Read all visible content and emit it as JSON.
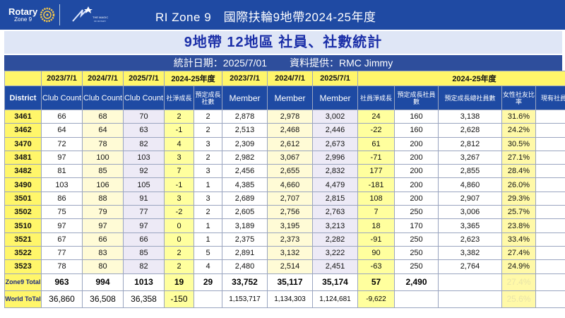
{
  "header": {
    "brand": "Rotary",
    "brand_sub": "Zone 9",
    "logo_tag": "THE MAGIC OF ROTARY",
    "title": "RI Zone 9　國際扶輪9地帶2024-25年度"
  },
  "subtitle": "9地帶 12地區 社員、社數統計",
  "stat": {
    "date": "統計日期：2025/7/01",
    "source": "資料提供：RMC Jimmy"
  },
  "columns_top": [
    "",
    "2023/7/1",
    "2024/7/1",
    "2025/7/1",
    "2024-25年度",
    "2023/7/1",
    "2024/7/1",
    "2025/7/1",
    "2024-25年度"
  ],
  "columns": {
    "district": "District",
    "club23": "Club Count",
    "club24": "Club Count",
    "club25": "Club Count",
    "club_net": "社淨成長",
    "club_goal": "預定成長社數",
    "mem23": "Member",
    "mem24": "Member",
    "mem25": "Member",
    "mem_net": "社員淨成長",
    "mem_goal": "預定成長社員數",
    "mem_goal_total": "預定成長總社員數",
    "female": "女性社友比率",
    "retention": "現有社員續留率"
  },
  "rows": [
    {
      "d": "3461",
      "c23": "66",
      "c24": "68",
      "c25": "70",
      "cn": "2",
      "cg": "2",
      "m23": "2,878",
      "m24": "2,978",
      "m25": "3,002",
      "mn": "24",
      "mg": "160",
      "mt": "3,138",
      "f": "31.6%"
    },
    {
      "d": "3462",
      "c23": "64",
      "c24": "64",
      "c25": "63",
      "cn": "-1",
      "cg": "2",
      "m23": "2,513",
      "m24": "2,468",
      "m25": "2,446",
      "mn": "-22",
      "mg": "160",
      "mt": "2,628",
      "f": "24.2%"
    },
    {
      "d": "3470",
      "c23": "72",
      "c24": "78",
      "c25": "82",
      "cn": "4",
      "cg": "3",
      "m23": "2,309",
      "m24": "2,612",
      "m25": "2,673",
      "mn": "61",
      "mg": "200",
      "mt": "2,812",
      "f": "30.5%"
    },
    {
      "d": "3481",
      "c23": "97",
      "c24": "100",
      "c25": "103",
      "cn": "3",
      "cg": "2",
      "m23": "2,982",
      "m24": "3,067",
      "m25": "2,996",
      "mn": "-71",
      "mg": "200",
      "mt": "3,267",
      "f": "27.1%"
    },
    {
      "d": "3482",
      "c23": "81",
      "c24": "85",
      "c25": "92",
      "cn": "7",
      "cg": "3",
      "m23": "2,456",
      "m24": "2,655",
      "m25": "2,832",
      "mn": "177",
      "mg": "200",
      "mt": "2,855",
      "f": "28.4%"
    },
    {
      "d": "3490",
      "c23": "103",
      "c24": "106",
      "c25": "105",
      "cn": "-1",
      "cg": "1",
      "m23": "4,385",
      "m24": "4,660",
      "m25": "4,479",
      "mn": "-181",
      "mg": "200",
      "mt": "4,860",
      "f": "26.0%"
    },
    {
      "d": "3501",
      "c23": "86",
      "c24": "88",
      "c25": "91",
      "cn": "3",
      "cg": "3",
      "m23": "2,689",
      "m24": "2,707",
      "m25": "2,815",
      "mn": "108",
      "mg": "200",
      "mt": "2,907",
      "f": "29.3%"
    },
    {
      "d": "3502",
      "c23": "75",
      "c24": "79",
      "c25": "77",
      "cn": "-2",
      "cg": "2",
      "m23": "2,605",
      "m24": "2,756",
      "m25": "2,763",
      "mn": "7",
      "mg": "250",
      "mt": "3,006",
      "f": "25.7%"
    },
    {
      "d": "3510",
      "c23": "97",
      "c24": "97",
      "c25": "97",
      "cn": "0",
      "cg": "1",
      "m23": "3,189",
      "m24": "3,195",
      "m25": "3,213",
      "mn": "18",
      "mg": "170",
      "mt": "3,365",
      "f": "23.8%"
    },
    {
      "d": "3521",
      "c23": "67",
      "c24": "66",
      "c25": "66",
      "cn": "0",
      "cg": "1",
      "m23": "2,375",
      "m24": "2,373",
      "m25": "2,282",
      "mn": "-91",
      "mg": "250",
      "mt": "2,623",
      "f": "33.4%"
    },
    {
      "d": "3522",
      "c23": "77",
      "c24": "83",
      "c25": "85",
      "cn": "2",
      "cg": "5",
      "m23": "2,891",
      "m24": "3,132",
      "m25": "3,222",
      "mn": "90",
      "mg": "250",
      "mt": "3,382",
      "f": "27.4%"
    },
    {
      "d": "3523",
      "c23": "78",
      "c24": "80",
      "c25": "82",
      "cn": "2",
      "cg": "4",
      "m23": "2,480",
      "m24": "2,514",
      "m25": "2,451",
      "mn": "-63",
      "mg": "250",
      "mt": "2,764",
      "f": "24.9%"
    }
  ],
  "zone_total": {
    "label": "Zone9 Total",
    "c23": "963",
    "c24": "994",
    "c25": "1013",
    "cn": "19",
    "cg": "29",
    "m23": "33,752",
    "m24": "35,117",
    "m25": "35,174",
    "mn": "57",
    "mg": "2,490",
    "f": "27.4%"
  },
  "world_total": {
    "label": "World ToTal",
    "c23": "36,860",
    "c24": "36,508",
    "c25": "36,358",
    "cn": "-150",
    "m23": "1,153,717",
    "m24": "1,134,303",
    "m25": "1,124,681",
    "mn": "-9,622",
    "f": "25.6%"
  },
  "colors": {
    "header_blue": "#1f4aa3",
    "highlight_yellow": "#fff66a",
    "decline_red": "#d2232a",
    "goal_navy": "#1c2a7e"
  }
}
